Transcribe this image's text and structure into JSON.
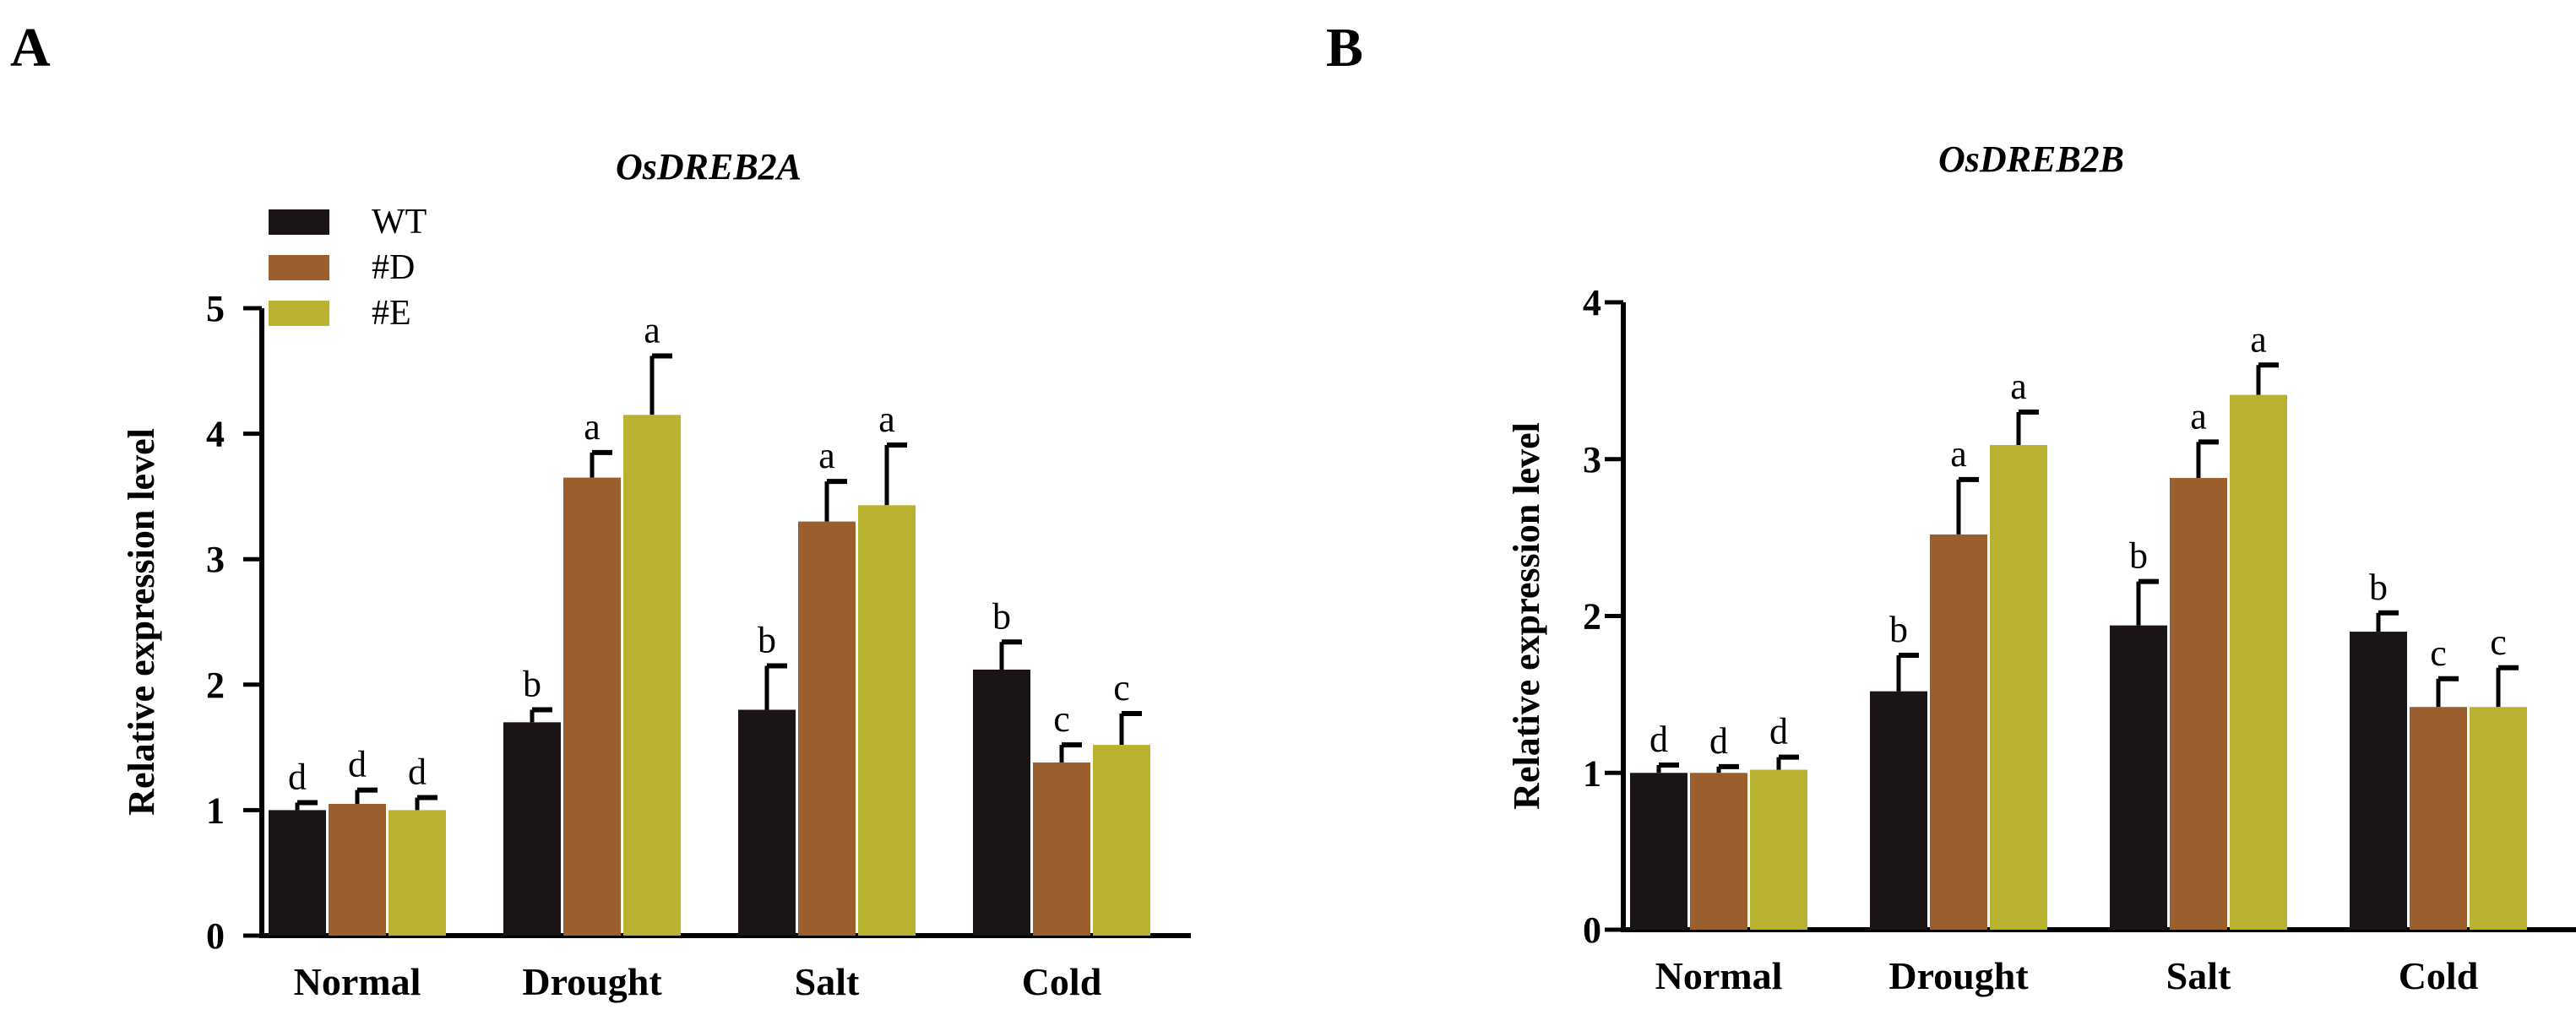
{
  "panels": [
    {
      "letter": "A"
    },
    {
      "letter": "B"
    }
  ],
  "chart_data": [
    {
      "type": "bar",
      "panel": "A",
      "title": "OsDREB2A",
      "xlabel": "",
      "ylabel": "Relative expression level",
      "ylim": [
        0,
        5
      ],
      "yticks": [
        0,
        1,
        2,
        3,
        4,
        5
      ],
      "grid": false,
      "legend_position": "top-left",
      "categories": [
        "Normal",
        "Drought",
        "Salt",
        "Cold"
      ],
      "series": [
        {
          "name": "WT",
          "color": "#1a1414",
          "values": [
            1.0,
            1.7,
            1.8,
            2.12
          ],
          "errors": [
            0.06,
            0.1,
            0.35,
            0.22
          ],
          "labels": [
            "d",
            "b",
            "b",
            "b"
          ]
        },
        {
          "name": "#D",
          "color": "#9b5e2d",
          "values": [
            1.05,
            3.65,
            3.3,
            1.38
          ],
          "errors": [
            0.11,
            0.2,
            0.32,
            0.14
          ],
          "labels": [
            "d",
            "a",
            "a",
            "c"
          ]
        },
        {
          "name": "#E",
          "color": "#b8b230",
          "values": [
            1.0,
            4.15,
            3.43,
            1.52
          ],
          "errors": [
            0.1,
            0.47,
            0.48,
            0.25
          ],
          "labels": [
            "d",
            "a",
            "a",
            "c"
          ]
        }
      ]
    },
    {
      "type": "bar",
      "panel": "B",
      "title": "OsDREB2B",
      "xlabel": "",
      "ylabel": "Relative expression level",
      "ylim": [
        0,
        4
      ],
      "yticks": [
        0,
        1,
        2,
        3,
        4
      ],
      "grid": false,
      "legend_position": "none",
      "categories": [
        "Normal",
        "Drought",
        "Salt",
        "Cold"
      ],
      "series": [
        {
          "name": "WT",
          "color": "#1a1414",
          "values": [
            1.0,
            1.52,
            1.94,
            1.9
          ],
          "errors": [
            0.05,
            0.23,
            0.28,
            0.12
          ],
          "labels": [
            "d",
            "b",
            "b",
            "b"
          ]
        },
        {
          "name": "#D",
          "color": "#9b5e2d",
          "values": [
            1.0,
            2.52,
            2.88,
            1.42
          ],
          "errors": [
            0.04,
            0.35,
            0.23,
            0.18
          ],
          "labels": [
            "d",
            "a",
            "a",
            "c"
          ]
        },
        {
          "name": "#E",
          "color": "#b8b230",
          "values": [
            1.02,
            3.09,
            3.41,
            1.42
          ],
          "errors": [
            0.08,
            0.21,
            0.19,
            0.25
          ],
          "labels": [
            "d",
            "a",
            "a",
            "c"
          ]
        }
      ]
    }
  ]
}
